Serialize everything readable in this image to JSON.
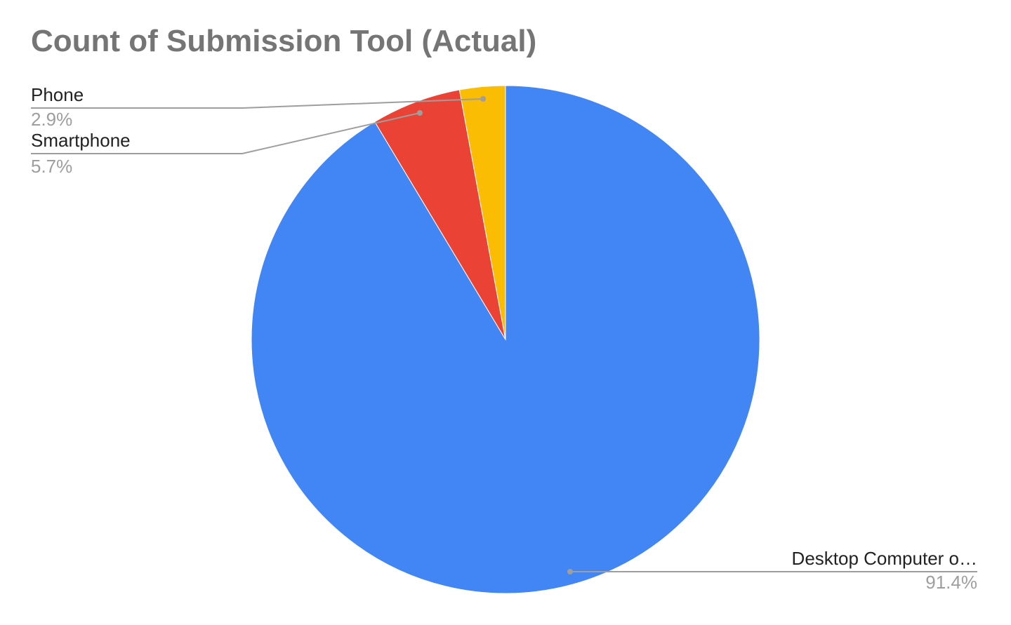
{
  "chart_data": {
    "type": "pie",
    "title": "Count of Submission Tool (Actual)",
    "slices": [
      {
        "label": "Desktop Computer o…",
        "percent_label": "91.4%",
        "value": 91.4,
        "color": "#4285f4"
      },
      {
        "label": "Smartphone",
        "percent_label": "5.7%",
        "value": 5.7,
        "color": "#ea4335"
      },
      {
        "label": "Phone",
        "percent_label": "2.9%",
        "value": 2.9,
        "color": "#fbbc04"
      }
    ],
    "legend": "none",
    "label_style": "callout"
  }
}
